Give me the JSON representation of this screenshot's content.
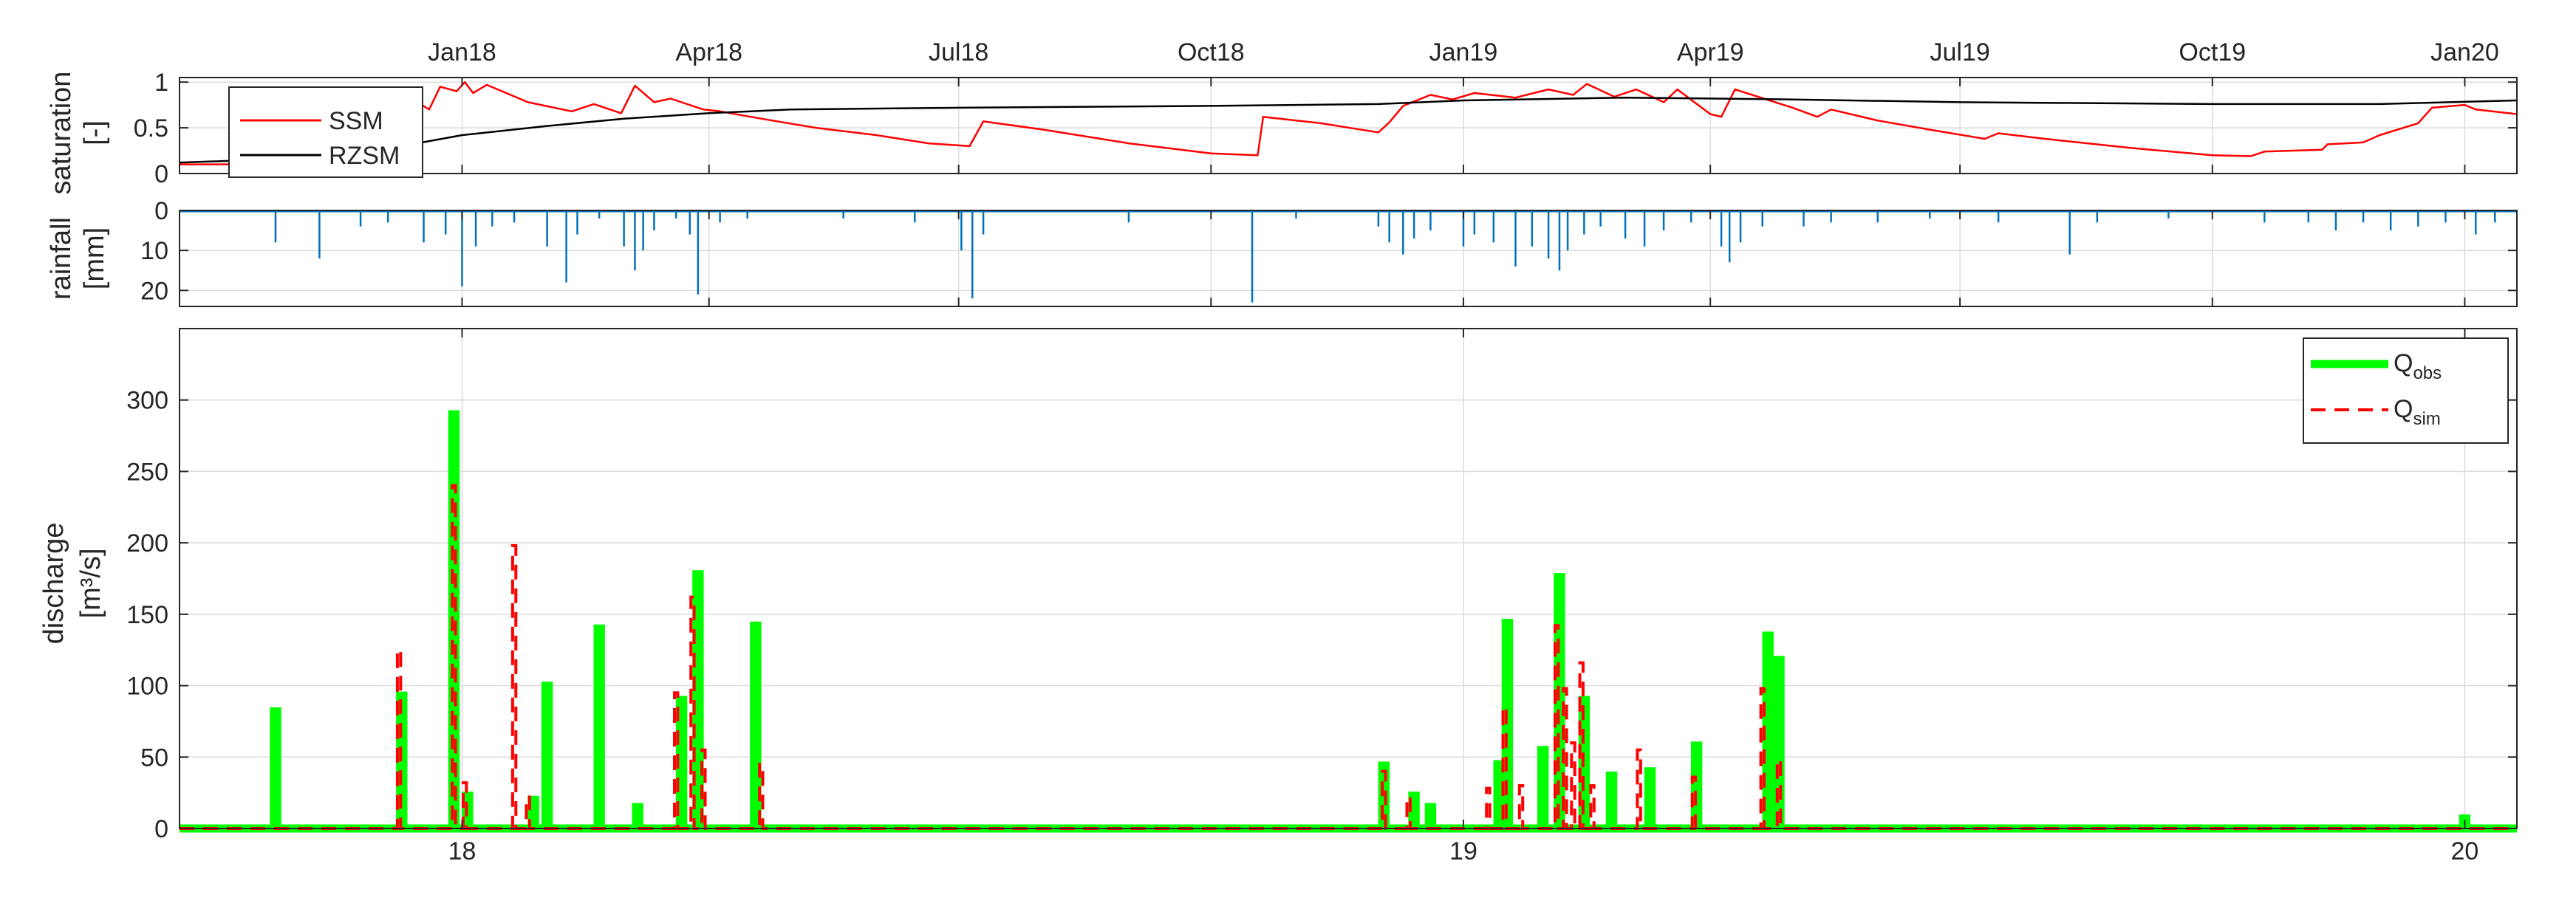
{
  "figure": {
    "colors": {
      "ssm": "#ff0000",
      "rzsm": "#000000",
      "rainfall": "#0072bd",
      "q_obs": "#00ff00",
      "q_sim": "#ff0000",
      "grid": "#dcdcdc",
      "axis": "#262626"
    }
  },
  "chart_data": [
    {
      "id": "saturation",
      "type": "line",
      "ylabel_line1": "saturation",
      "ylabel_line2": "[-]",
      "top_tick_labels": [
        "Jan18",
        "Apr18",
        "Jul18",
        "Oct18",
        "Jan19",
        "Apr19",
        "Jul19",
        "Oct19",
        "Jan20"
      ],
      "top_tick_dates": [
        "2018-01-01",
        "2018-04-01",
        "2018-07-01",
        "2018-10-01",
        "2019-01-01",
        "2019-04-01",
        "2019-07-01",
        "2019-10-01",
        "2020-01-01"
      ],
      "xlim": [
        "2017-09-20",
        "2020-01-20"
      ],
      "ylim": [
        0,
        1.05
      ],
      "yticks": [
        0,
        0.5,
        1
      ],
      "ytick_labels": [
        "0",
        "0.5",
        "1"
      ],
      "grid": true,
      "legend_position": "top-left",
      "series": [
        {
          "name": "SSM",
          "color": "#ff0000",
          "points": [
            [
              "2017-09-20",
              0.1
            ],
            [
              "2017-10-15",
              0.1
            ],
            [
              "2017-10-20",
              0.18
            ],
            [
              "2017-11-05",
              0.12
            ],
            [
              "2017-11-10",
              0.3
            ],
            [
              "2017-11-28",
              0.22
            ],
            [
              "2017-12-01",
              0.7
            ],
            [
              "2017-12-08",
              0.55
            ],
            [
              "2017-12-12",
              0.85
            ],
            [
              "2017-12-20",
              0.7
            ],
            [
              "2017-12-24",
              0.95
            ],
            [
              "2017-12-30",
              0.9
            ],
            [
              "2018-01-02",
              1.0
            ],
            [
              "2018-01-05",
              0.88
            ],
            [
              "2018-01-10",
              0.97
            ],
            [
              "2018-01-25",
              0.78
            ],
            [
              "2018-02-10",
              0.68
            ],
            [
              "2018-02-18",
              0.76
            ],
            [
              "2018-02-28",
              0.66
            ],
            [
              "2018-03-05",
              0.96
            ],
            [
              "2018-03-12",
              0.78
            ],
            [
              "2018-03-18",
              0.82
            ],
            [
              "2018-03-30",
              0.7
            ],
            [
              "2018-04-05",
              0.68
            ],
            [
              "2018-04-20",
              0.6
            ],
            [
              "2018-05-10",
              0.5
            ],
            [
              "2018-06-01",
              0.42
            ],
            [
              "2018-06-20",
              0.33
            ],
            [
              "2018-07-05",
              0.3
            ],
            [
              "2018-07-10",
              0.57
            ],
            [
              "2018-08-01",
              0.48
            ],
            [
              "2018-09-01",
              0.33
            ],
            [
              "2018-10-01",
              0.22
            ],
            [
              "2018-10-18",
              0.2
            ],
            [
              "2018-10-20",
              0.62
            ],
            [
              "2018-11-10",
              0.55
            ],
            [
              "2018-12-01",
              0.45
            ],
            [
              "2018-12-05",
              0.56
            ],
            [
              "2018-12-10",
              0.74
            ],
            [
              "2018-12-20",
              0.86
            ],
            [
              "2018-12-28",
              0.81
            ],
            [
              "2019-01-05",
              0.88
            ],
            [
              "2019-01-20",
              0.83
            ],
            [
              "2019-02-01",
              0.92
            ],
            [
              "2019-02-10",
              0.86
            ],
            [
              "2019-02-15",
              0.98
            ],
            [
              "2019-02-25",
              0.84
            ],
            [
              "2019-03-05",
              0.92
            ],
            [
              "2019-03-15",
              0.78
            ],
            [
              "2019-03-20",
              0.92
            ],
            [
              "2019-04-01",
              0.65
            ],
            [
              "2019-04-05",
              0.62
            ],
            [
              "2019-04-10",
              0.92
            ],
            [
              "2019-05-01",
              0.72
            ],
            [
              "2019-05-10",
              0.62
            ],
            [
              "2019-05-15",
              0.7
            ],
            [
              "2019-06-01",
              0.58
            ],
            [
              "2019-06-20",
              0.48
            ],
            [
              "2019-07-10",
              0.38
            ],
            [
              "2019-07-15",
              0.44
            ],
            [
              "2019-08-01",
              0.38
            ],
            [
              "2019-09-01",
              0.28
            ],
            [
              "2019-10-01",
              0.2
            ],
            [
              "2019-10-15",
              0.19
            ],
            [
              "2019-10-20",
              0.24
            ],
            [
              "2019-11-10",
              0.26
            ],
            [
              "2019-11-12",
              0.32
            ],
            [
              "2019-11-25",
              0.34
            ],
            [
              "2019-12-01",
              0.42
            ],
            [
              "2019-12-15",
              0.55
            ],
            [
              "2019-12-20",
              0.72
            ],
            [
              "2020-01-01",
              0.75
            ],
            [
              "2020-01-05",
              0.7
            ],
            [
              "2020-01-20",
              0.65
            ]
          ]
        },
        {
          "name": "RZSM",
          "color": "#000000",
          "points": [
            [
              "2017-09-20",
              0.12
            ],
            [
              "2017-10-20",
              0.15
            ],
            [
              "2017-11-20",
              0.2
            ],
            [
              "2017-12-10",
              0.3
            ],
            [
              "2018-01-01",
              0.42
            ],
            [
              "2018-02-01",
              0.52
            ],
            [
              "2018-03-01",
              0.6
            ],
            [
              "2018-04-01",
              0.66
            ],
            [
              "2018-05-01",
              0.7
            ],
            [
              "2018-07-01",
              0.72
            ],
            [
              "2018-10-01",
              0.74
            ],
            [
              "2018-12-01",
              0.76
            ],
            [
              "2019-01-01",
              0.8
            ],
            [
              "2019-03-01",
              0.83
            ],
            [
              "2019-05-01",
              0.81
            ],
            [
              "2019-07-01",
              0.78
            ],
            [
              "2019-10-01",
              0.76
            ],
            [
              "2019-12-01",
              0.76
            ],
            [
              "2020-01-20",
              0.8
            ]
          ]
        }
      ]
    },
    {
      "id": "rainfall",
      "type": "bar",
      "ylabel_line1": "rainfall",
      "ylabel_line2": "[mm]",
      "xlim": [
        "2017-09-20",
        "2020-01-20"
      ],
      "ylim": [
        0,
        24
      ],
      "y_reversed": true,
      "yticks": [
        0,
        10,
        20
      ],
      "ytick_labels": [
        "0",
        "10",
        "20"
      ],
      "grid": true,
      "series": [
        {
          "name": "",
          "color": "#0072bd",
          "points": [
            [
              "2017-10-25",
              8
            ],
            [
              "2017-11-10",
              12
            ],
            [
              "2017-11-25",
              4
            ],
            [
              "2017-12-05",
              3
            ],
            [
              "2017-12-18",
              8
            ],
            [
              "2017-12-26",
              6
            ],
            [
              "2018-01-01",
              19
            ],
            [
              "2018-01-06",
              9
            ],
            [
              "2018-01-12",
              4
            ],
            [
              "2018-01-20",
              3
            ],
            [
              "2018-02-01",
              9
            ],
            [
              "2018-02-08",
              18
            ],
            [
              "2018-02-12",
              6
            ],
            [
              "2018-02-20",
              2
            ],
            [
              "2018-03-01",
              9
            ],
            [
              "2018-03-05",
              15
            ],
            [
              "2018-03-08",
              10
            ],
            [
              "2018-03-12",
              5
            ],
            [
              "2018-03-20",
              2
            ],
            [
              "2018-03-25",
              6
            ],
            [
              "2018-03-28",
              21
            ],
            [
              "2018-04-05",
              3
            ],
            [
              "2018-04-15",
              2
            ],
            [
              "2018-05-20",
              2
            ],
            [
              "2018-06-15",
              3
            ],
            [
              "2018-07-02",
              10
            ],
            [
              "2018-07-06",
              22
            ],
            [
              "2018-07-10",
              6
            ],
            [
              "2018-09-01",
              3
            ],
            [
              "2018-10-16",
              23
            ],
            [
              "2018-11-01",
              2
            ],
            [
              "2018-12-01",
              4
            ],
            [
              "2018-12-05",
              8
            ],
            [
              "2018-12-10",
              11
            ],
            [
              "2018-12-14",
              7
            ],
            [
              "2018-12-20",
              5
            ],
            [
              "2019-01-01",
              9
            ],
            [
              "2019-01-05",
              6
            ],
            [
              "2019-01-12",
              8
            ],
            [
              "2019-01-20",
              14
            ],
            [
              "2019-01-26",
              9
            ],
            [
              "2019-02-01",
              12
            ],
            [
              "2019-02-05",
              15
            ],
            [
              "2019-02-08",
              10
            ],
            [
              "2019-02-14",
              6
            ],
            [
              "2019-02-20",
              4
            ],
            [
              "2019-03-01",
              7
            ],
            [
              "2019-03-08",
              9
            ],
            [
              "2019-03-15",
              5
            ],
            [
              "2019-03-25",
              3
            ],
            [
              "2019-04-05",
              9
            ],
            [
              "2019-04-08",
              13
            ],
            [
              "2019-04-12",
              8
            ],
            [
              "2019-04-20",
              4
            ],
            [
              "2019-05-05",
              4
            ],
            [
              "2019-05-15",
              3
            ],
            [
              "2019-06-01",
              3
            ],
            [
              "2019-06-20",
              2
            ],
            [
              "2019-07-15",
              3
            ],
            [
              "2019-08-10",
              11
            ],
            [
              "2019-08-20",
              3
            ],
            [
              "2019-09-15",
              2
            ],
            [
              "2019-10-20",
              3
            ],
            [
              "2019-11-05",
              3
            ],
            [
              "2019-11-15",
              5
            ],
            [
              "2019-11-25",
              3
            ],
            [
              "2019-12-05",
              5
            ],
            [
              "2019-12-15",
              4
            ],
            [
              "2019-12-25",
              3
            ],
            [
              "2020-01-05",
              6
            ],
            [
              "2020-01-12",
              3
            ]
          ]
        }
      ]
    },
    {
      "id": "discharge",
      "type": "line",
      "ylabel_line1": "discharge",
      "ylabel_line2": "[m³/s]",
      "bottom_tick_labels": [
        "18",
        "19",
        "20"
      ],
      "bottom_tick_dates": [
        "2018-01-01",
        "2019-01-01",
        "2020-01-01"
      ],
      "xlim": [
        "2017-09-20",
        "2020-01-20"
      ],
      "ylim": [
        0,
        350
      ],
      "yticks": [
        0,
        50,
        100,
        150,
        200,
        250,
        300
      ],
      "ytick_labels": [
        "0",
        "50",
        "100",
        "150",
        "200",
        "250",
        "300"
      ],
      "grid": true,
      "legend_position": "top-right",
      "series": [
        {
          "name": "Q_obs",
          "label_main": "Q",
          "label_sub": "obs",
          "color": "#00ff00",
          "peaks": [
            [
              "2017-10-25",
              82
            ],
            [
              "2017-12-10",
              93
            ],
            [
              "2017-12-29",
              290
            ],
            [
              "2018-01-03",
              23
            ],
            [
              "2018-01-27",
              20
            ],
            [
              "2018-02-01",
              100
            ],
            [
              "2018-02-20",
              140
            ],
            [
              "2018-03-06",
              15
            ],
            [
              "2018-03-22",
              90
            ],
            [
              "2018-03-28",
              178
            ],
            [
              "2018-04-18",
              142
            ],
            [
              "2018-12-03",
              44
            ],
            [
              "2018-12-14",
              23
            ],
            [
              "2018-12-20",
              15
            ],
            [
              "2019-01-14",
              45
            ],
            [
              "2019-01-17",
              144
            ],
            [
              "2019-01-30",
              55
            ],
            [
              "2019-02-05",
              176
            ],
            [
              "2019-02-14",
              90
            ],
            [
              "2019-02-24",
              37
            ],
            [
              "2019-03-10",
              40
            ],
            [
              "2019-03-27",
              58
            ],
            [
              "2019-04-22",
              135
            ],
            [
              "2019-04-26",
              118
            ],
            [
              "2020-01-01",
              7
            ]
          ]
        },
        {
          "name": "Q_sim",
          "label_main": "Q",
          "label_sub": "sim",
          "color": "#ff0000",
          "peaks": [
            [
              "2017-12-09",
              125
            ],
            [
              "2017-12-29",
              240
            ],
            [
              "2018-01-02",
              32
            ],
            [
              "2018-01-20",
              198
            ],
            [
              "2018-01-25",
              22
            ],
            [
              "2018-03-20",
              95
            ],
            [
              "2018-03-26",
              162
            ],
            [
              "2018-03-30",
              55
            ],
            [
              "2018-04-20",
              45
            ],
            [
              "2018-12-03",
              40
            ],
            [
              "2018-12-12",
              22
            ],
            [
              "2019-01-10",
              28
            ],
            [
              "2019-01-16",
              85
            ],
            [
              "2019-01-22",
              30
            ],
            [
              "2019-02-04",
              142
            ],
            [
              "2019-02-07",
              98
            ],
            [
              "2019-02-10",
              60
            ],
            [
              "2019-02-13",
              116
            ],
            [
              "2019-02-17",
              30
            ],
            [
              "2019-03-06",
              55
            ],
            [
              "2019-03-26",
              36
            ],
            [
              "2019-04-20",
              98
            ],
            [
              "2019-04-26",
              48
            ]
          ]
        }
      ]
    }
  ]
}
